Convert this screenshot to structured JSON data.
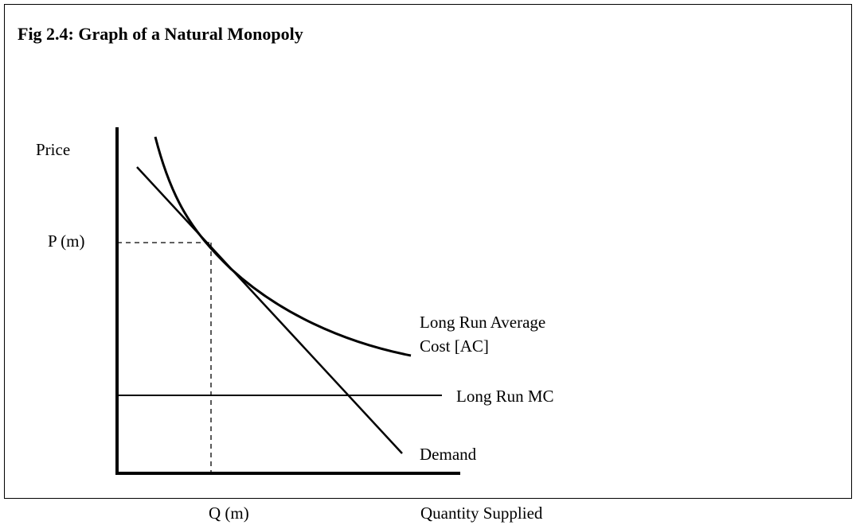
{
  "title": "Fig 2.4: Graph of a Natural Monopoly",
  "axis_labels": {
    "y": "Price",
    "x": "Quantity Supplied"
  },
  "markers": {
    "price": "P (m)",
    "quantity": "Q (m)"
  },
  "curves": {
    "average_cost": [
      "Long Run Average",
      "Cost [AC]"
    ],
    "marginal_cost": "Long Run MC",
    "demand": "Demand"
  }
}
